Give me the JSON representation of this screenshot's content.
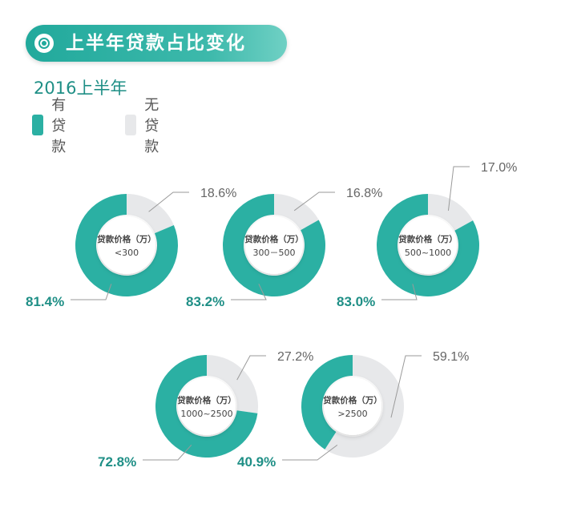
{
  "header": {
    "title": "上半年贷款占比变化",
    "subtitle": "2016上半年"
  },
  "legend": [
    {
      "label": "有贷款",
      "color": "#2bb0a3"
    },
    {
      "label": "无贷款",
      "color": "#e7e8ea"
    }
  ],
  "chart_data": {
    "type": "pie",
    "title": "上半年贷款占比变化",
    "subtitle": "2016上半年",
    "series_names": [
      "有贷款",
      "无贷款"
    ],
    "colors": {
      "有贷款": "#2bb0a3",
      "无贷款": "#e7e8ea"
    },
    "charts": [
      {
        "center_label": "贷款价格（万）",
        "category": "<300",
        "loan_label": "81.4%",
        "no_loan_label": "18.6%",
        "loan": 81.4,
        "no_loan": 18.6
      },
      {
        "center_label": "贷款价格（万）",
        "category": "300－500",
        "loan_label": "83.2%",
        "no_loan_label": "16.8%",
        "loan": 83.2,
        "no_loan": 16.8
      },
      {
        "center_label": "贷款价格（万）",
        "category": "500~1000",
        "loan_label": "83.0%",
        "no_loan_label": "17.0%",
        "loan": 83.0,
        "no_loan": 17.0
      },
      {
        "center_label": "贷款价格（万）",
        "category": "1000~2500",
        "loan_label": "72.8%",
        "no_loan_label": "27.2%",
        "loan": 72.8,
        "no_loan": 27.2
      },
      {
        "center_label": "贷款价格（万）",
        "category": ">2500",
        "loan_label": "40.9%",
        "no_loan_label": "59.1%",
        "loan": 40.9,
        "no_loan": 59.1
      }
    ]
  }
}
